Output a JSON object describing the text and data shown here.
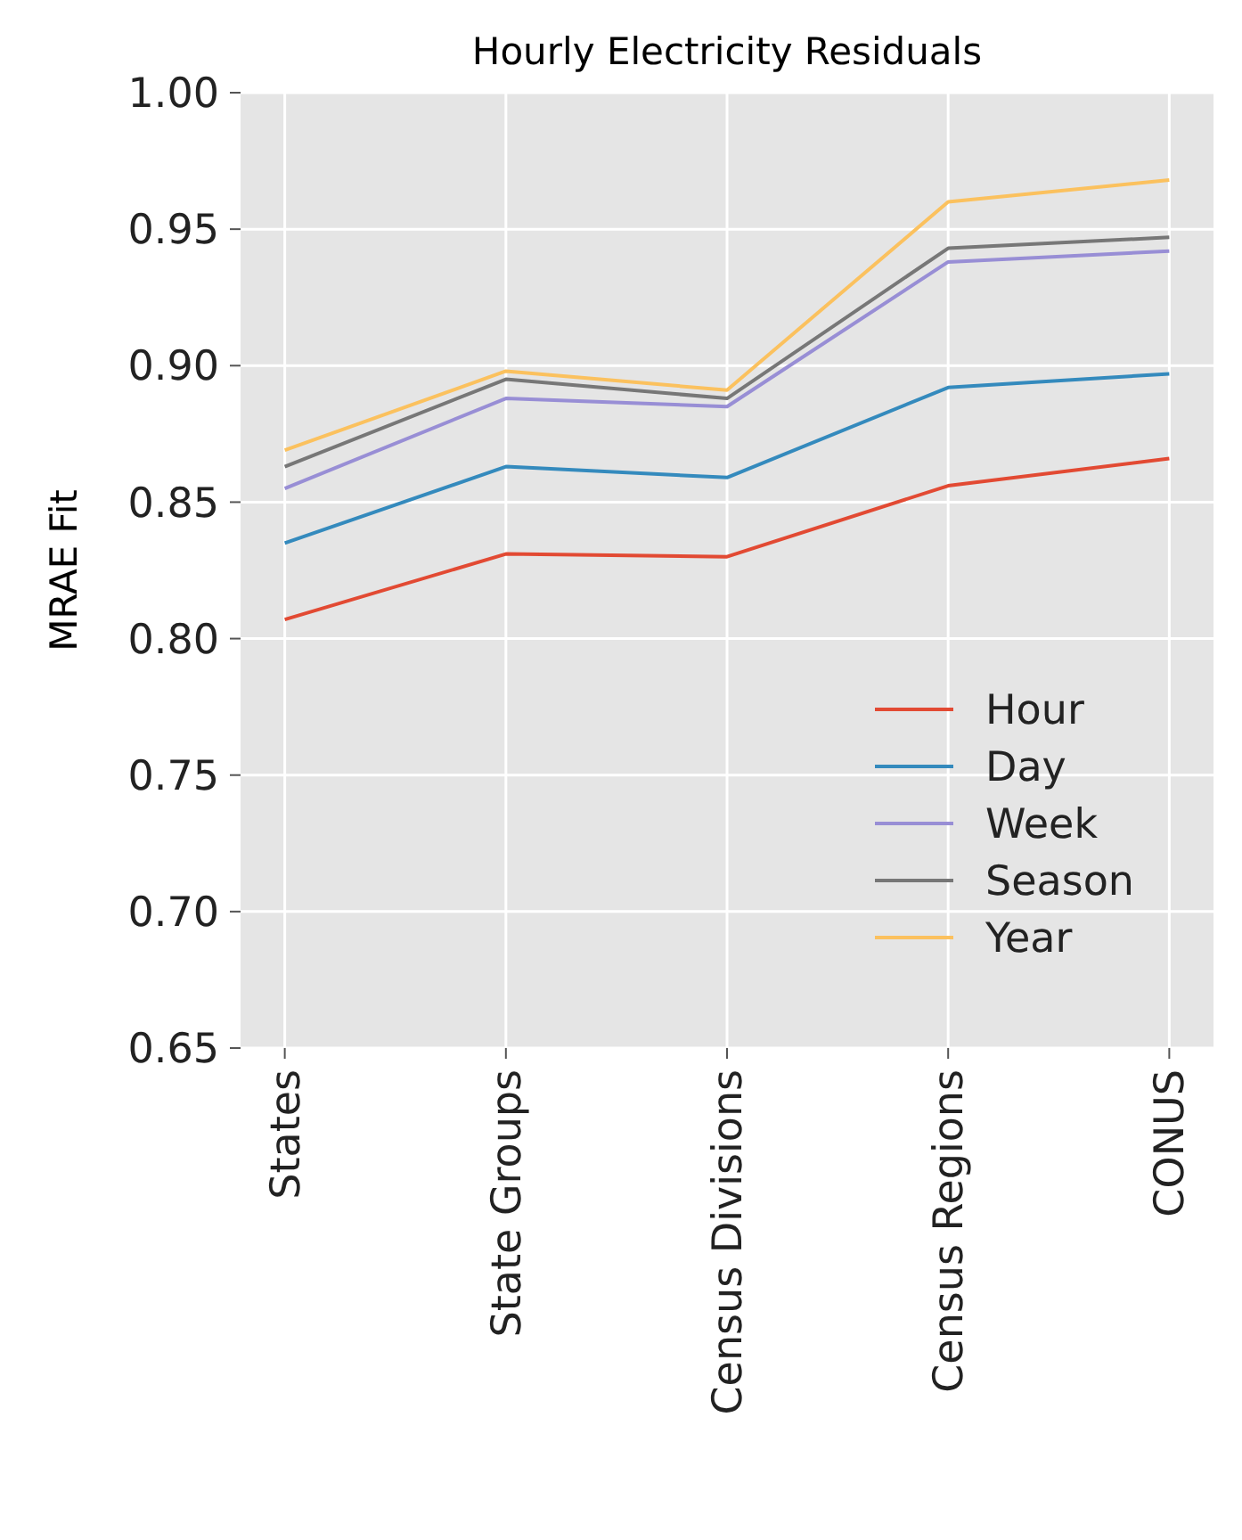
{
  "chart_data": {
    "type": "line",
    "title": "Hourly Electricity Residuals",
    "ylabel": "MRAE Fit",
    "categories": [
      "States",
      "State Groups",
      "Census Divisions",
      "Census Regions",
      "CONUS"
    ],
    "series": [
      {
        "name": "Hour",
        "color": "#e24a33",
        "values": [
          0.807,
          0.831,
          0.83,
          0.856,
          0.866
        ]
      },
      {
        "name": "Day",
        "color": "#348abd",
        "values": [
          0.835,
          0.863,
          0.859,
          0.892,
          0.897
        ]
      },
      {
        "name": "Week",
        "color": "#988ed5",
        "values": [
          0.855,
          0.888,
          0.885,
          0.938,
          0.942
        ]
      },
      {
        "name": "Season",
        "color": "#777777",
        "values": [
          0.863,
          0.895,
          0.888,
          0.943,
          0.947
        ]
      },
      {
        "name": "Year",
        "color": "#fbc15e",
        "values": [
          0.869,
          0.898,
          0.891,
          0.96,
          0.968
        ]
      }
    ],
    "ylim": [
      0.65,
      1.0
    ],
    "yticks": [
      {
        "value": 0.65,
        "label": "0.65"
      },
      {
        "value": 0.7,
        "label": "0.70"
      },
      {
        "value": 0.75,
        "label": "0.75"
      },
      {
        "value": 0.8,
        "label": "0.80"
      },
      {
        "value": 0.85,
        "label": "0.85"
      },
      {
        "value": 0.9,
        "label": "0.90"
      },
      {
        "value": 0.95,
        "label": "0.95"
      },
      {
        "value": 1.0,
        "label": "1.00"
      }
    ],
    "grid": true,
    "legend": "bottom right",
    "marker": "none",
    "line_style": "solid"
  }
}
